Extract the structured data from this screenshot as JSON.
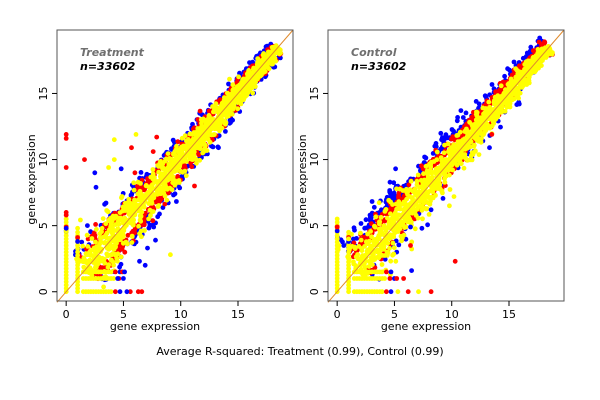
{
  "chart_data": [
    {
      "type": "scatter",
      "panel": "Treatment",
      "title": "Treatment",
      "annotation": "n=33602",
      "n": 33602,
      "xlabel": "gene expression",
      "ylabel": "gene expression",
      "xlim": [
        -0.8,
        19.8
      ],
      "ylim": [
        -0.7,
        19.8
      ],
      "xticks": [
        0,
        5,
        10,
        15
      ],
      "yticks": [
        0,
        5,
        10,
        15
      ],
      "reference_line": {
        "slope": 1,
        "intercept": 0,
        "color": "#e08a2c"
      },
      "series": [
        {
          "name": "yellow",
          "color": "#ffff00"
        },
        {
          "name": "red",
          "color": "#ff0000"
        },
        {
          "name": "blue",
          "color": "#0000ff"
        }
      ],
      "outliers": {
        "red": [
          [
            0,
            11.9
          ],
          [
            0,
            11.6
          ],
          [
            0,
            9.4
          ],
          [
            1.6,
            10.0
          ],
          [
            5.7,
            10.9
          ],
          [
            7.6,
            10.6
          ],
          [
            7.9,
            11.7
          ],
          [
            11.2,
            8.0
          ],
          [
            6.0,
            9.0
          ],
          [
            0,
            6.0
          ],
          [
            0,
            5.8
          ],
          [
            4.9,
            1.5
          ],
          [
            5.6,
            0
          ],
          [
            6.3,
            0
          ],
          [
            6.6,
            0
          ]
        ],
        "blue": [
          [
            2.5,
            9.0
          ],
          [
            2.6,
            7.9
          ],
          [
            4.8,
            9.3
          ],
          [
            13.3,
            10.9
          ],
          [
            7.8,
            3.9
          ],
          [
            6.9,
            2.0
          ],
          [
            6.4,
            2.3
          ],
          [
            7.1,
            3.3
          ],
          [
            5.1,
            1.5
          ],
          [
            5.3,
            0
          ],
          [
            4.5,
            1.0
          ],
          [
            0,
            4.8
          ]
        ],
        "yellow": [
          [
            4.2,
            11.5
          ],
          [
            6.1,
            11.9
          ],
          [
            3.7,
            9.4
          ],
          [
            4.2,
            10.0
          ],
          [
            9.1,
            2.8
          ],
          [
            0,
            4.6
          ],
          [
            0,
            5.5
          ],
          [
            1,
            4.8
          ]
        ]
      },
      "notes": "Dense yellow cloud along y=x from ~1.5 to ~18.5 with red and blue points at cloud edges; vertical stripes of points at x=0 and x=1; horizontal stripes at y=0, y=1, y=1.5"
    },
    {
      "type": "scatter",
      "panel": "Control",
      "title": "Control",
      "annotation": "n=33602",
      "n": 33602,
      "xlabel": "gene expression",
      "ylabel": "gene expression",
      "xlim": [
        -0.8,
        19.8
      ],
      "ylim": [
        -0.7,
        19.8
      ],
      "xticks": [
        0,
        5,
        10,
        15
      ],
      "yticks": [
        0,
        5,
        10,
        15
      ],
      "reference_line": {
        "slope": 1,
        "intercept": 0,
        "color": "#e08a2c"
      },
      "series": [
        {
          "name": "yellow",
          "color": "#ffff00"
        },
        {
          "name": "red",
          "color": "#ff0000"
        },
        {
          "name": "blue",
          "color": "#0000ff"
        }
      ],
      "outliers": {
        "red": [
          [
            0,
            4.9
          ],
          [
            6.2,
            0
          ],
          [
            8.2,
            0
          ],
          [
            5.2,
            1.0
          ],
          [
            5.8,
            1.0
          ],
          [
            10.3,
            2.3
          ],
          [
            13.5,
            11.9
          ],
          [
            6.4,
            3.5
          ]
        ],
        "blue": [
          [
            5.1,
            9.3
          ],
          [
            6.5,
            1.6
          ],
          [
            10.8,
            13.7
          ],
          [
            6.4,
            4.9
          ],
          [
            13.3,
            10.9
          ],
          [
            7.4,
            4.8
          ],
          [
            8.2,
            6.2
          ],
          [
            15.9,
            14.2
          ]
        ],
        "yellow": [
          [
            7.1,
            0
          ],
          [
            5.3,
            0
          ],
          [
            0,
            4.0
          ],
          [
            1,
            4.0
          ],
          [
            10.2,
            7.2
          ],
          [
            9.8,
            6.5
          ]
        ]
      },
      "notes": "Dense yellow cloud along y=x with red and blue points mostly above the diagonal (upper-left edge); vertical stripes at x=0 and x=1; horizontal stripes at y=0, y=1, y=1.5"
    }
  ],
  "caption": "Average R-squared: Treatment (0.99), Control (0.99)",
  "r_squared": {
    "Treatment": 0.99,
    "Control": 0.99
  }
}
